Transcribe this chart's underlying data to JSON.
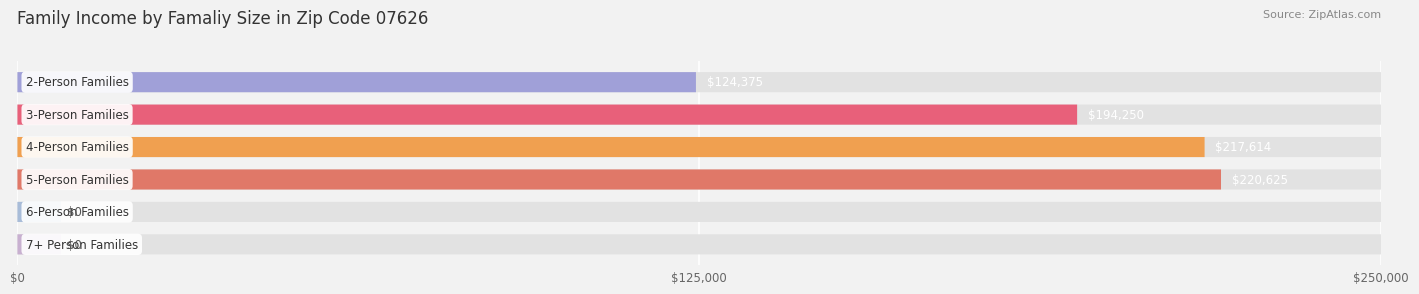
{
  "title": "Family Income by Famaliy Size in Zip Code 07626",
  "source": "Source: ZipAtlas.com",
  "categories": [
    "2-Person Families",
    "3-Person Families",
    "4-Person Families",
    "5-Person Families",
    "6-Person Families",
    "7+ Person Families"
  ],
  "values": [
    124375,
    194250,
    217614,
    220625,
    0,
    0
  ],
  "bar_colors": [
    "#a0a0d8",
    "#e8607a",
    "#f0a050",
    "#e07868",
    "#a8bcd8",
    "#c8b0d0"
  ],
  "bar_label_colors": [
    "#555555",
    "#ffffff",
    "#ffffff",
    "#ffffff",
    "#555555",
    "#555555"
  ],
  "xlim": [
    0,
    250000
  ],
  "xticks": [
    0,
    125000,
    250000
  ],
  "xtick_labels": [
    "$0",
    "$125,000",
    "$250,000"
  ],
  "bar_height": 0.62,
  "bg_color": "#f2f2f2",
  "bar_bg_color": "#e2e2e2",
  "title_fontsize": 12,
  "label_fontsize": 8.5,
  "value_fontsize": 8.5,
  "source_fontsize": 8
}
